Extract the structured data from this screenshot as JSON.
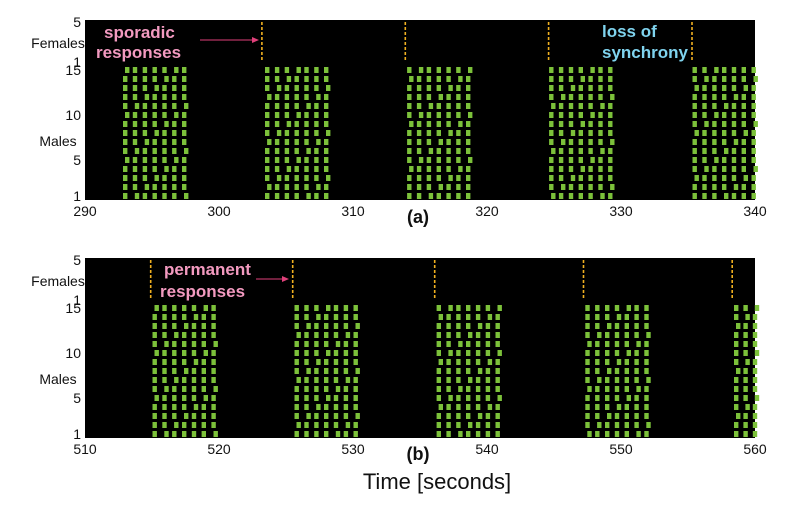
{
  "xlabel": "Time [seconds]",
  "colors": {
    "background": "#000000",
    "male": "#7cc13a",
    "female": "#f0b020",
    "pink": "#f39ac0",
    "cyan": "#7fd3ee",
    "arrow": "#e0407a"
  },
  "chart_data": [
    {
      "type": "raster",
      "label": "(a)",
      "xlim": [
        290,
        340
      ],
      "x_ticks": [
        "290",
        "300",
        "310",
        "320",
        "330",
        "340"
      ],
      "female_label": "Females",
      "female_ticks": [
        "5",
        "1"
      ],
      "female_ylim": [
        1,
        5
      ],
      "male_label": "Males",
      "male_ticks": [
        "15",
        "10",
        "5",
        "1"
      ],
      "male_ylim": [
        1,
        15
      ],
      "female_responses": [
        303.2,
        313.9,
        324.6,
        335.3
      ],
      "female_rows": [
        1,
        5
      ],
      "male_bursts": [
        {
          "start": 293.0,
          "end": 297.4,
          "pulses": 7
        },
        {
          "start": 303.6,
          "end": 308.0,
          "pulses": 7
        },
        {
          "start": 314.2,
          "end": 318.6,
          "pulses": 7
        },
        {
          "start": 324.8,
          "end": 329.2,
          "pulses": 7
        },
        {
          "start": 335.5,
          "end": 339.9,
          "pulses": 7
        }
      ],
      "annotations": [
        {
          "text": "sporadic",
          "color": "pink"
        },
        {
          "text": "responses",
          "color": "pink"
        },
        {
          "text": "loss of",
          "color": "cyan"
        },
        {
          "text": "synchrony",
          "color": "cyan"
        }
      ]
    },
    {
      "type": "raster",
      "label": "(b)",
      "xlim": [
        510,
        560
      ],
      "x_ticks": [
        "510",
        "520",
        "530",
        "540",
        "550",
        "560"
      ],
      "female_label": "Females",
      "female_ticks": [
        "5",
        "1"
      ],
      "female_ylim": [
        1,
        5
      ],
      "male_label": "Males",
      "male_ticks": [
        "15",
        "10",
        "5",
        "1"
      ],
      "male_ylim": [
        1,
        15
      ],
      "female_responses": [
        514.9,
        525.5,
        536.1,
        547.2,
        558.3
      ],
      "female_rows": [
        1,
        5
      ],
      "male_bursts": [
        {
          "start": 515.2,
          "end": 519.6,
          "pulses": 7
        },
        {
          "start": 525.8,
          "end": 530.2,
          "pulses": 7
        },
        {
          "start": 536.4,
          "end": 540.8,
          "pulses": 7
        },
        {
          "start": 547.5,
          "end": 551.9,
          "pulses": 7
        },
        {
          "start": 558.6,
          "end": 560.0,
          "pulses": 3
        }
      ],
      "annotations": [
        {
          "text": "permanent",
          "color": "pink"
        },
        {
          "text": "responses",
          "color": "pink"
        }
      ]
    }
  ]
}
